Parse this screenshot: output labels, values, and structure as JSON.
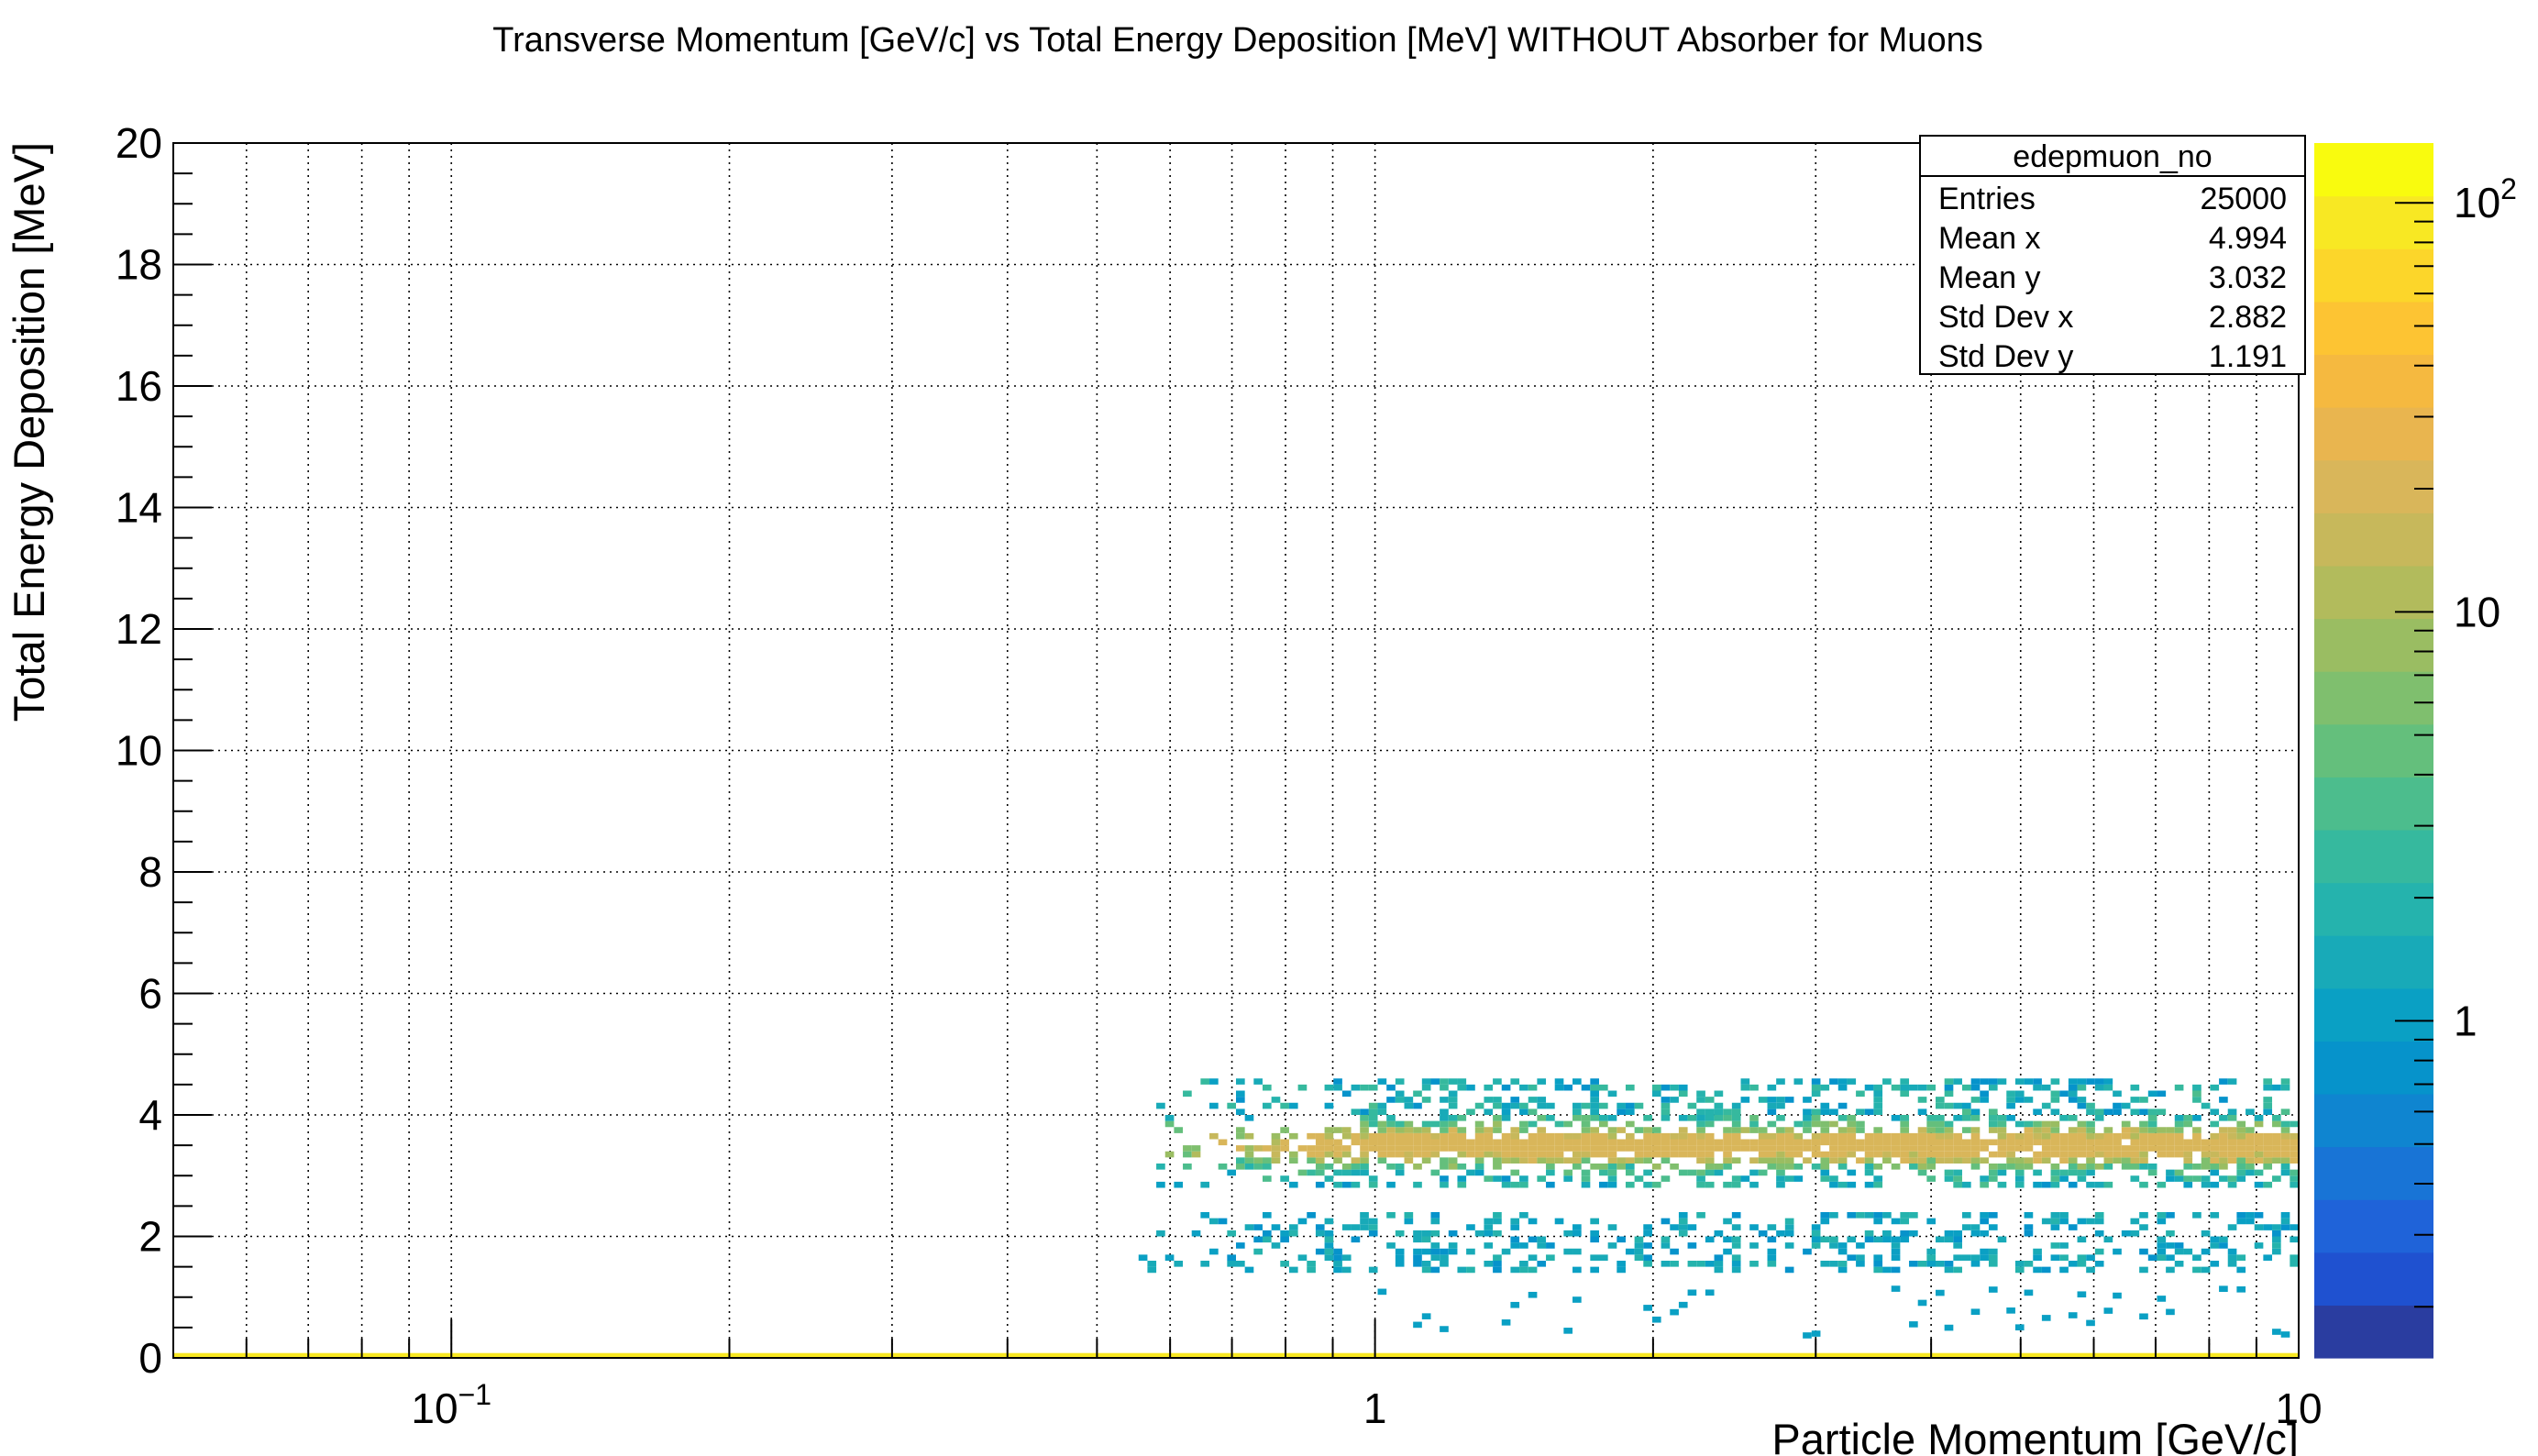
{
  "chart_data": {
    "type": "heatmap",
    "title": "Transverse Momentum [GeV/c] vs Total Energy Deposition [MeV] WITHOUT Absorber for Muons",
    "xlabel": "Particle Momentum [GeV/c]",
    "ylabel": "Total Energy Deposition [MeV]",
    "x_scale": "log",
    "xlim": [
      0.05,
      10
    ],
    "ylim": [
      0,
      20
    ],
    "x_ticks": [
      {
        "value": 0.1,
        "label": "10",
        "exp": "−1"
      },
      {
        "value": 1,
        "label": "1",
        "exp": ""
      },
      {
        "value": 10,
        "label": "10",
        "exp": ""
      }
    ],
    "y_ticks": [
      "0",
      "2",
      "4",
      "6",
      "8",
      "10",
      "12",
      "14",
      "16",
      "18",
      "20"
    ],
    "grid": true,
    "colorbar": {
      "scale": "log",
      "range": [
        0.15,
        140
      ],
      "ticks": [
        {
          "value": 1,
          "label": "1",
          "exp": ""
        },
        {
          "value": 10,
          "label": "10",
          "exp": ""
        },
        {
          "value": 100,
          "label": "10",
          "exp": "2"
        }
      ],
      "colors": [
        "#2a3da0",
        "#1f51d0",
        "#1f63d9",
        "#1874d6",
        "#0f85d0",
        "#0693cb",
        "#0aa0c4",
        "#18aab8",
        "#25b3ad",
        "#36b99e",
        "#4cbd8d",
        "#64bf7c",
        "#7fbf6e",
        "#9abd62",
        "#b2bb5c",
        "#c7b85b",
        "#d9b65a",
        "#e9b54f",
        "#f5b940",
        "#fdc433",
        "#fcd62a",
        "#f8e823",
        "#f9fb0e"
      ]
    },
    "stats_box": {
      "title": "edepmuon_no",
      "rows": [
        {
          "label": "Entries",
          "value": "25000"
        },
        {
          "label": "Mean x",
          "value": "4.994"
        },
        {
          "label": "Mean y",
          "value": "3.032"
        },
        {
          "label": "Std Dev x",
          "value": "2.882"
        },
        {
          "label": "Std Dev y",
          "value": "1.191"
        }
      ]
    },
    "regions": [
      {
        "x": [
          0.05,
          10
        ],
        "y": [
          0,
          0.12
        ],
        "level": "max",
        "desc": "zero-deposit band"
      },
      {
        "x": [
          0.55,
          10
        ],
        "y": [
          2.8,
          4.1
        ],
        "level": "peak ~3.5",
        "desc": "main band"
      },
      {
        "x": [
          0.55,
          10
        ],
        "y": [
          1.4,
          2.3
        ],
        "level": "low",
        "desc": "secondary band"
      }
    ]
  }
}
